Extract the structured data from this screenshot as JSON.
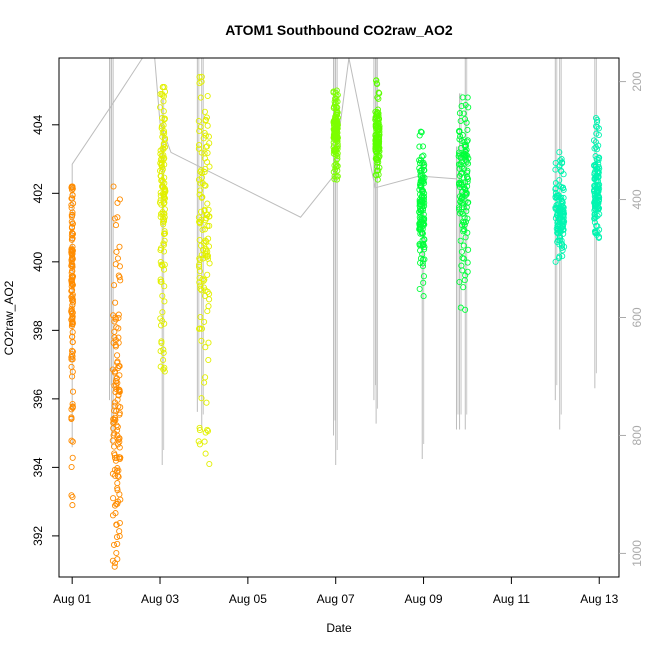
{
  "chart_data": {
    "type": "scatter",
    "title": "ATOM1 Southbound CO2raw_AO2",
    "xlabel": "Date",
    "ylabel": "CO2raw_AO2",
    "x_unit": "days",
    "xlim": [
      -0.3,
      12.45
    ],
    "ylim": [
      390.8,
      405.95
    ],
    "y2lim": [
      1040,
      160
    ],
    "x_ticks": [
      {
        "value": 0,
        "label": "Aug 01"
      },
      {
        "value": 2,
        "label": "Aug 03"
      },
      {
        "value": 4,
        "label": "Aug 05"
      },
      {
        "value": 6,
        "label": "Aug 07"
      },
      {
        "value": 8,
        "label": "Aug 09"
      },
      {
        "value": 10,
        "label": "Aug 11"
      },
      {
        "value": 12,
        "label": "Aug 13"
      }
    ],
    "y_ticks": [
      {
        "value": 392,
        "label": "392"
      },
      {
        "value": 394,
        "label": "394"
      },
      {
        "value": 396,
        "label": "396"
      },
      {
        "value": 398,
        "label": "398"
      },
      {
        "value": 400,
        "label": "400"
      },
      {
        "value": 402,
        "label": "402"
      },
      {
        "value": 404,
        "label": "404"
      }
    ],
    "y2_ticks": [
      {
        "value": 200,
        "label": "200"
      },
      {
        "value": 400,
        "label": "400"
      },
      {
        "value": 600,
        "label": "600"
      },
      {
        "value": 800,
        "label": "800"
      },
      {
        "value": 1000,
        "label": "1000"
      }
    ],
    "point_clusters": [
      {
        "x": -0.02,
        "width": 0.04,
        "y_min": 392.9,
        "y_max": 402.2,
        "center": 399.5,
        "color": "#ff8c00"
      },
      {
        "x": 0.92,
        "width": 0.18,
        "y_min": 391.1,
        "y_max": 402.2,
        "center": 395.5,
        "color": "#ff8c00"
      },
      {
        "x": 2.0,
        "width": 0.12,
        "y_min": 396.8,
        "y_max": 405.1,
        "center": 402.5,
        "color": "#e2f000"
      },
      {
        "x": 2.88,
        "width": 0.25,
        "y_min": 394.1,
        "y_max": 405.4,
        "center": 401.0,
        "color": "#e2f000"
      },
      {
        "x": 5.95,
        "width": 0.1,
        "y_min": 402.4,
        "y_max": 405.0,
        "center": 403.7,
        "color": "#7dff00"
      },
      {
        "x": 6.9,
        "width": 0.1,
        "y_min": 402.4,
        "y_max": 405.3,
        "center": 403.6,
        "color": "#5cff00"
      },
      {
        "x": 7.9,
        "width": 0.12,
        "y_min": 399.0,
        "y_max": 403.8,
        "center": 401.7,
        "color": "#00ff3a"
      },
      {
        "x": 8.8,
        "width": 0.22,
        "y_min": 398.6,
        "y_max": 404.8,
        "center": 402.5,
        "color": "#00ff3a"
      },
      {
        "x": 11.0,
        "width": 0.2,
        "y_min": 400.0,
        "y_max": 403.2,
        "center": 401.4,
        "color": "#00f5b0"
      },
      {
        "x": 11.88,
        "width": 0.12,
        "y_min": 400.7,
        "y_max": 404.2,
        "center": 402.2,
        "color": "#00f5b0"
      }
    ],
    "grey_line": {
      "color": "#bdbdbd",
      "path_y2": [
        {
          "x": 0.0,
          "y2": 820
        },
        {
          "x": 0.0,
          "y2": 340
        },
        {
          "x": 0.9,
          "y2": 240
        },
        {
          "x": 1.6,
          "y2": 160
        },
        {
          "x": 1.88,
          "y2": 160
        },
        {
          "x": 2.0,
          "y2": 270
        },
        {
          "x": 2.25,
          "y2": 320
        },
        {
          "x": 5.2,
          "y2": 430
        },
        {
          "x": 5.95,
          "y2": 360
        },
        {
          "x": 6.3,
          "y2": 160
        },
        {
          "x": 6.9,
          "y2": 380
        },
        {
          "x": 7.9,
          "y2": 360
        },
        {
          "x": 8.75,
          "y2": 365
        }
      ],
      "spikes": [
        {
          "x": 0.85,
          "y2_top": 160,
          "y2_bottom": 740
        },
        {
          "x": 0.9,
          "y2_top": 160,
          "y2_bottom": 820
        },
        {
          "x": 2.05,
          "y2_top": 230,
          "y2_bottom": 850
        },
        {
          "x": 2.85,
          "y2_top": 160,
          "y2_bottom": 760
        },
        {
          "x": 2.95,
          "y2_top": 160,
          "y2_bottom": 790
        },
        {
          "x": 5.95,
          "y2_top": 160,
          "y2_bottom": 800
        },
        {
          "x": 6.0,
          "y2_top": 160,
          "y2_bottom": 850
        },
        {
          "x": 6.87,
          "y2_top": 160,
          "y2_bottom": 740
        },
        {
          "x": 6.92,
          "y2_top": 160,
          "y2_bottom": 780
        },
        {
          "x": 7.97,
          "y2_top": 330,
          "y2_bottom": 840
        },
        {
          "x": 8.75,
          "y2_top": 310,
          "y2_bottom": 790
        },
        {
          "x": 8.82,
          "y2_top": 220,
          "y2_bottom": 790
        },
        {
          "x": 8.95,
          "y2_top": 160,
          "y2_bottom": 790
        },
        {
          "x": 11.0,
          "y2_top": 160,
          "y2_bottom": 740
        },
        {
          "x": 11.1,
          "y2_top": 160,
          "y2_bottom": 790
        },
        {
          "x": 11.9,
          "y2_top": 160,
          "y2_bottom": 720
        }
      ]
    }
  }
}
